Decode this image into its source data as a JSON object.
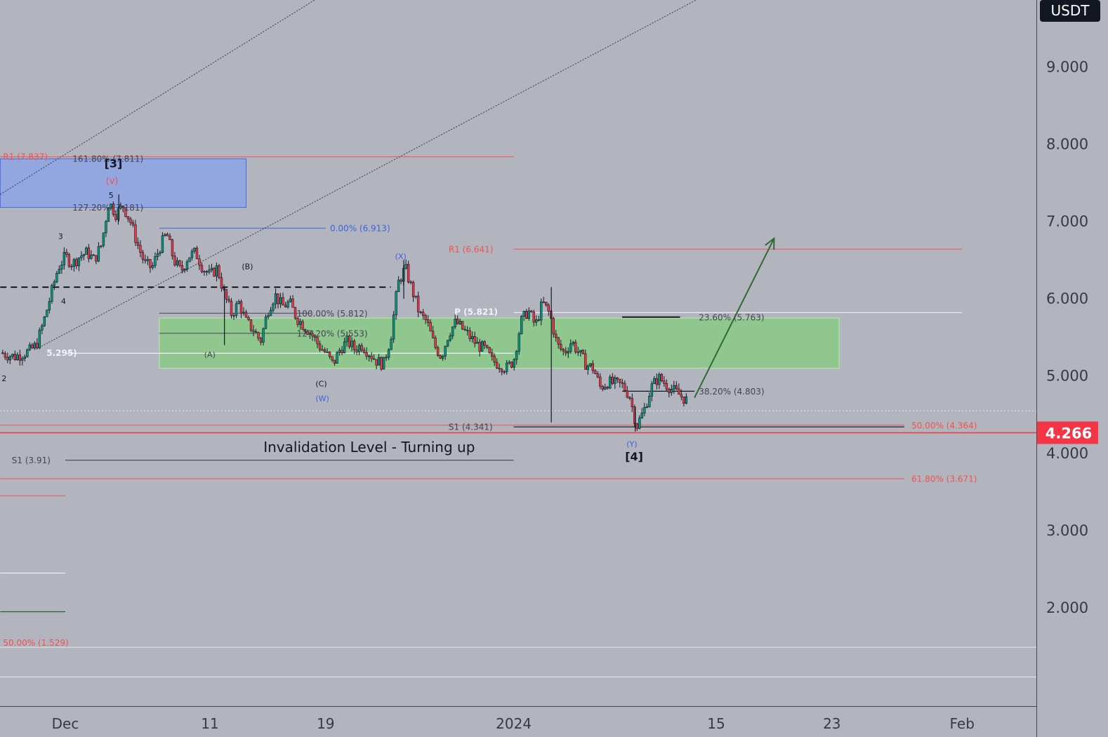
{
  "chart_data": {
    "type": "candlestick",
    "currency": "USDT",
    "y_axis": {
      "ticks": [
        {
          "v": 2,
          "label": "2.000"
        },
        {
          "v": 3,
          "label": "3.000"
        },
        {
          "v": 4,
          "label": "4.000"
        },
        {
          "v": 5,
          "label": "5.000"
        },
        {
          "v": 6,
          "label": "6.000"
        },
        {
          "v": 7,
          "label": "7.000"
        },
        {
          "v": 8,
          "label": "8.000"
        },
        {
          "v": 9,
          "label": "9.000"
        }
      ],
      "range": [
        0.75,
        10.2
      ]
    },
    "x_axis": {
      "ticks": [
        {
          "d": 0,
          "label": "Dec"
        },
        {
          "d": 10,
          "label": "11"
        },
        {
          "d": 18,
          "label": "19"
        },
        {
          "d": 31,
          "label": "2024"
        },
        {
          "d": 45,
          "label": "15"
        },
        {
          "d": 53,
          "label": "23"
        },
        {
          "d": 62,
          "label": "Feb"
        }
      ],
      "range": [
        -4.5,
        67.5
      ],
      "origin_date": "Dec"
    },
    "last_price": {
      "value": 4.266,
      "label": "4.266",
      "color": "#f23645"
    },
    "price_path": [
      [
        -4.5,
        5.3
      ],
      [
        -3.5,
        5.25
      ],
      [
        -2.5,
        5.32
      ],
      [
        -2,
        5.4
      ],
      [
        -1.5,
        5.7
      ],
      [
        -1,
        6.05
      ],
      [
        -0.5,
        6.4
      ],
      [
        0,
        6.55
      ],
      [
        0.5,
        6.45
      ],
      [
        1,
        6.55
      ],
      [
        1.5,
        6.6
      ],
      [
        2,
        6.5
      ],
      [
        2.5,
        6.7
      ],
      [
        3,
        7.25
      ],
      [
        3.5,
        7.1
      ],
      [
        4,
        7.2
      ],
      [
        4.5,
        7.0
      ],
      [
        5,
        6.7
      ],
      [
        5.5,
        6.45
      ],
      [
        6,
        6.4
      ],
      [
        6.5,
        6.65
      ],
      [
        7,
        6.85
      ],
      [
        7.5,
        6.5
      ],
      [
        8,
        6.35
      ],
      [
        8.5,
        6.55
      ],
      [
        9,
        6.6
      ],
      [
        9.5,
        6.4
      ],
      [
        10,
        6.3
      ],
      [
        10.5,
        6.4
      ],
      [
        11,
        6.05
      ],
      [
        11.5,
        5.8
      ],
      [
        12,
        5.95
      ],
      [
        12.5,
        5.7
      ],
      [
        13,
        5.6
      ],
      [
        13.5,
        5.45
      ],
      [
        14,
        5.85
      ],
      [
        14.5,
        6.05
      ],
      [
        15,
        5.9
      ],
      [
        15.5,
        5.95
      ],
      [
        16,
        5.75
      ],
      [
        16.5,
        5.65
      ],
      [
        17,
        5.55
      ],
      [
        17.5,
        5.4
      ],
      [
        18,
        5.3
      ],
      [
        18.5,
        5.15
      ],
      [
        19,
        5.35
      ],
      [
        19.5,
        5.45
      ],
      [
        20,
        5.35
      ],
      [
        20.5,
        5.4
      ],
      [
        21,
        5.3
      ],
      [
        21.5,
        5.2
      ],
      [
        22,
        5.15
      ],
      [
        22.5,
        5.5
      ],
      [
        23,
        6.2
      ],
      [
        23.5,
        6.4
      ],
      [
        24,
        6.1
      ],
      [
        24.5,
        5.8
      ],
      [
        25,
        5.7
      ],
      [
        25.5,
        5.4
      ],
      [
        26,
        5.25
      ],
      [
        26.5,
        5.55
      ],
      [
        27,
        5.7
      ],
      [
        27.5,
        5.6
      ],
      [
        28,
        5.5
      ],
      [
        28.5,
        5.4
      ],
      [
        29,
        5.35
      ],
      [
        29.5,
        5.2
      ],
      [
        30,
        5.15
      ],
      [
        30.5,
        5.1
      ],
      [
        31,
        5.2
      ],
      [
        31.5,
        5.7
      ],
      [
        32,
        5.85
      ],
      [
        32.5,
        5.65
      ],
      [
        33,
        5.95
      ],
      [
        33.5,
        5.8
      ],
      [
        34,
        5.4
      ],
      [
        34.5,
        5.3
      ],
      [
        35,
        5.45
      ],
      [
        35.5,
        5.3
      ],
      [
        36,
        5.15
      ],
      [
        36.5,
        5.1
      ],
      [
        37,
        4.85
      ],
      [
        37.5,
        4.92
      ],
      [
        38,
        4.9
      ],
      [
        38.5,
        4.88
      ],
      [
        39,
        4.75
      ],
      [
        39.5,
        4.35
      ],
      [
        40,
        4.55
      ],
      [
        40.5,
        4.85
      ],
      [
        41,
        4.98
      ],
      [
        41.5,
        4.9
      ],
      [
        42,
        4.82
      ],
      [
        42.5,
        4.75
      ],
      [
        43,
        4.68
      ]
    ],
    "extreme_wicks": [
      {
        "d": 33.6,
        "high": 6.15,
        "low": 4.4
      },
      {
        "d": 3.7,
        "high": 7.35,
        "low": 7.0
      },
      {
        "d": 23.4,
        "high": 6.5,
        "low": 6.0
      },
      {
        "d": 11,
        "high": 6.15,
        "low": 5.4
      },
      {
        "d": 39.4,
        "high": 4.6,
        "low": 4.28
      }
    ],
    "zones": [
      {
        "name": "blue-zone",
        "d1": -4.5,
        "d2": 12.5,
        "y1": 7.181,
        "y2": 7.811,
        "color": "#90a6e3"
      },
      {
        "name": "green-zone",
        "d1": 6.5,
        "d2": 53.5,
        "y1": 5.1,
        "y2": 5.75,
        "color": "#8ec98c"
      }
    ],
    "lines": [
      {
        "name": "r1-left-line",
        "d1": -4.5,
        "d2": 31,
        "y": 7.837,
        "color": "#ef5350",
        "w": 1
      },
      {
        "name": "r1-right-line",
        "d1": 31,
        "d2": 62,
        "y": 6.641,
        "color": "#ef5350",
        "w": 1
      },
      {
        "name": "pivot-line",
        "d1": 31,
        "d2": 62,
        "y": 5.821,
        "color": "#f0f3fa",
        "w": 1.2
      },
      {
        "name": "fib-0-line",
        "d1": 6.5,
        "d2": 18,
        "y": 6.913,
        "color": "#3d63e0",
        "w": 1
      },
      {
        "name": "fib-100-line",
        "d1": 6.5,
        "d2": 17,
        "y": 5.812,
        "color": "#434651",
        "w": 1
      },
      {
        "name": "fib-127-line",
        "d1": 6.5,
        "d2": 17,
        "y": 5.553,
        "color": "#434651",
        "w": 1
      },
      {
        "name": "level-5295-line",
        "d1": 0,
        "d2": 31,
        "y": 5.295,
        "color": "#f0f3fa",
        "w": 1.2
      },
      {
        "name": "fib-23-line",
        "d1": 38.5,
        "d2": 42.5,
        "y": 5.763,
        "color": "#131722",
        "w": 2
      },
      {
        "name": "fib-38-line",
        "d1": 38.5,
        "d2": 43.5,
        "y": 4.803,
        "color": "#131722",
        "w": 1.2
      },
      {
        "name": "s1-right-line",
        "d1": 31,
        "d2": 58,
        "y": 4.341,
        "color": "#363a45",
        "w": 1.5
      },
      {
        "name": "s1-left-line",
        "d1": 0,
        "d2": 31,
        "y": 3.91,
        "color": "#434651",
        "w": 1.2
      },
      {
        "name": "fib-50-line",
        "d1": -4.5,
        "d2": 58,
        "y": 4.364,
        "color": "#ef5350",
        "w": 1
      },
      {
        "name": "fib-61-line",
        "d1": -4.5,
        "d2": 58,
        "y": 3.671,
        "color": "#ef5350",
        "w": 1
      },
      {
        "name": "left-red-line",
        "d1": -4.5,
        "d2": 0,
        "y": 3.45,
        "color": "#ef5350",
        "w": 1
      },
      {
        "name": "left-white-line",
        "d1": -4.5,
        "d2": 0,
        "y": 2.45,
        "color": "#f0f3fa",
        "w": 1.2
      },
      {
        "name": "left-green-line",
        "d1": -4.5,
        "d2": 0,
        "y": 1.95,
        "color": "#2e5c38",
        "w": 1.2
      },
      {
        "name": "bottom-white-line-1",
        "d1": -4.5,
        "d2": 67.5,
        "y": 1.49,
        "color": "#e7e9ef",
        "w": 1
      },
      {
        "name": "bottom-white-line-2",
        "d1": -4.5,
        "d2": 67.5,
        "y": 1.105,
        "color": "#e7e9ef",
        "w": 1
      }
    ],
    "dashed_line": {
      "d1": -4.5,
      "d2": 22.5,
      "y": 6.15,
      "color": "#131722"
    },
    "dotted_price_line": {
      "y": 4.55,
      "color": "#e7e9ef"
    },
    "channel_lines": [
      {
        "name": "channel-upper-line",
        "d1": -4.5,
        "y1": 7.35,
        "d2": 21,
        "y2": 10.3
      },
      {
        "name": "channel-lower-line",
        "d1": -2,
        "y1": 5.35,
        "d2": 48,
        "y2": 10.3
      }
    ],
    "projection_arrow": {
      "d1": 43.5,
      "y1": 4.72,
      "d2": 49,
      "y2": 6.78,
      "color": "#2e6b34"
    },
    "labels": [
      {
        "name": "r1-left-label",
        "text": "R1 (7.837)",
        "d": -4.3,
        "y": 7.84,
        "color": "#ef5350",
        "size": 12
      },
      {
        "name": "fib-161-label",
        "text": "161.80% (7.811)",
        "d": 0.5,
        "y": 7.81,
        "color": "#434651",
        "size": 12
      },
      {
        "name": "fib-127-upper-label",
        "text": "127.20% (7.181)",
        "d": 0.5,
        "y": 7.18,
        "color": "#434651",
        "size": 12
      },
      {
        "name": "fib-0-label",
        "text": "0.00% (6.913)",
        "d": 18.3,
        "y": 6.91,
        "color": "#3d63e0",
        "size": 12
      },
      {
        "name": "r1-right-label",
        "text": "R1 (6.641)",
        "d": 26.5,
        "y": 6.64,
        "color": "#ef5350",
        "size": 12
      },
      {
        "name": "fib-100-label",
        "text": "100.00% (5.812)",
        "d": 16,
        "y": 5.81,
        "color": "#434651",
        "size": 12
      },
      {
        "name": "fib-127-lower-label",
        "text": "127.20% (5.553)",
        "d": 16,
        "y": 5.55,
        "color": "#434651",
        "size": 12
      },
      {
        "name": "pivot-label",
        "text": "P (5.821)",
        "d": 26.9,
        "y": 5.83,
        "color": "#f0f3fa",
        "size": 12,
        "bold": true
      },
      {
        "name": "fib-23-label",
        "text": "23.60% (5.763)",
        "d": 43.8,
        "y": 5.76,
        "color": "#434651",
        "size": 12
      },
      {
        "name": "level-5295-label",
        "text": "5.295)",
        "d": -1.3,
        "y": 5.3,
        "color": "#f0f3fa",
        "size": 12,
        "bold": true
      },
      {
        "name": "fib-38-label",
        "text": "38.20% (4.803)",
        "d": 43.8,
        "y": 4.8,
        "color": "#434651",
        "size": 12
      },
      {
        "name": "s1-right-label",
        "text": "S1 (4.341)",
        "d": 26.5,
        "y": 4.34,
        "color": "#434651",
        "size": 12
      },
      {
        "name": "fib-50-label",
        "text": "50.00% (4.364)",
        "d": 58.5,
        "y": 4.36,
        "color": "#ef5350",
        "size": 12
      },
      {
        "name": "s1-left-label",
        "text": "S1 (3.91)",
        "d": -3.7,
        "y": 3.91,
        "color": "#434651",
        "size": 12
      },
      {
        "name": "fib-61-label",
        "text": "61.80% (3.671)",
        "d": 58.5,
        "y": 3.67,
        "color": "#ef5350",
        "size": 12
      },
      {
        "name": "fib-50-left-label",
        "text": "50.00% (1.529)",
        "d": -4.3,
        "y": 1.55,
        "color": "#ef5350",
        "size": 12
      },
      {
        "name": "invalidation-label",
        "text": "Invalidation Level - Turning up",
        "d": 13.7,
        "y": 4.08,
        "color": "#131722",
        "size": 20
      },
      {
        "name": "wave-3-label",
        "text": "[3]",
        "d": 2.7,
        "y": 7.75,
        "color": "#131722",
        "size": 16,
        "bold": true
      },
      {
        "name": "wave-v-label",
        "text": "(v)",
        "d": 2.8,
        "y": 7.53,
        "color": "#ef5350",
        "size": 13
      },
      {
        "name": "wave-5-label",
        "text": "5",
        "d": 3.0,
        "y": 7.34,
        "color": "#131722",
        "size": 11
      },
      {
        "name": "wave-wave3-label",
        "text": "3",
        "d": -0.5,
        "y": 6.81,
        "color": "#131722",
        "size": 11
      },
      {
        "name": "wave-4-label",
        "text": "4",
        "d": -0.3,
        "y": 5.97,
        "color": "#131722",
        "size": 11
      },
      {
        "name": "wave-2-label",
        "text": "2",
        "d": -4.4,
        "y": 4.97,
        "color": "#131722",
        "size": 11
      },
      {
        "name": "wave-A-label",
        "text": "(A)",
        "d": 9.6,
        "y": 5.28,
        "color": "#434651",
        "size": 11
      },
      {
        "name": "wave-B-label",
        "text": "(B)",
        "d": 12.2,
        "y": 6.42,
        "color": "#131722",
        "size": 11
      },
      {
        "name": "wave-C-label",
        "text": "(C)",
        "d": 17.3,
        "y": 4.9,
        "color": "#131722",
        "size": 11
      },
      {
        "name": "wave-W-label",
        "text": "(W)",
        "d": 17.3,
        "y": 4.71,
        "color": "#3d63e0",
        "size": 11
      },
      {
        "name": "wave-X-label",
        "text": "(X)",
        "d": 22.8,
        "y": 6.55,
        "color": "#3d63e0",
        "size": 11
      },
      {
        "name": "wave-Y-label",
        "text": "(Y)",
        "d": 38.8,
        "y": 4.12,
        "color": "#3d63e0",
        "size": 11
      },
      {
        "name": "wave-4-bracket-label",
        "text": "[4]",
        "d": 38.7,
        "y": 3.96,
        "color": "#131722",
        "size": 16,
        "bold": true
      }
    ]
  }
}
